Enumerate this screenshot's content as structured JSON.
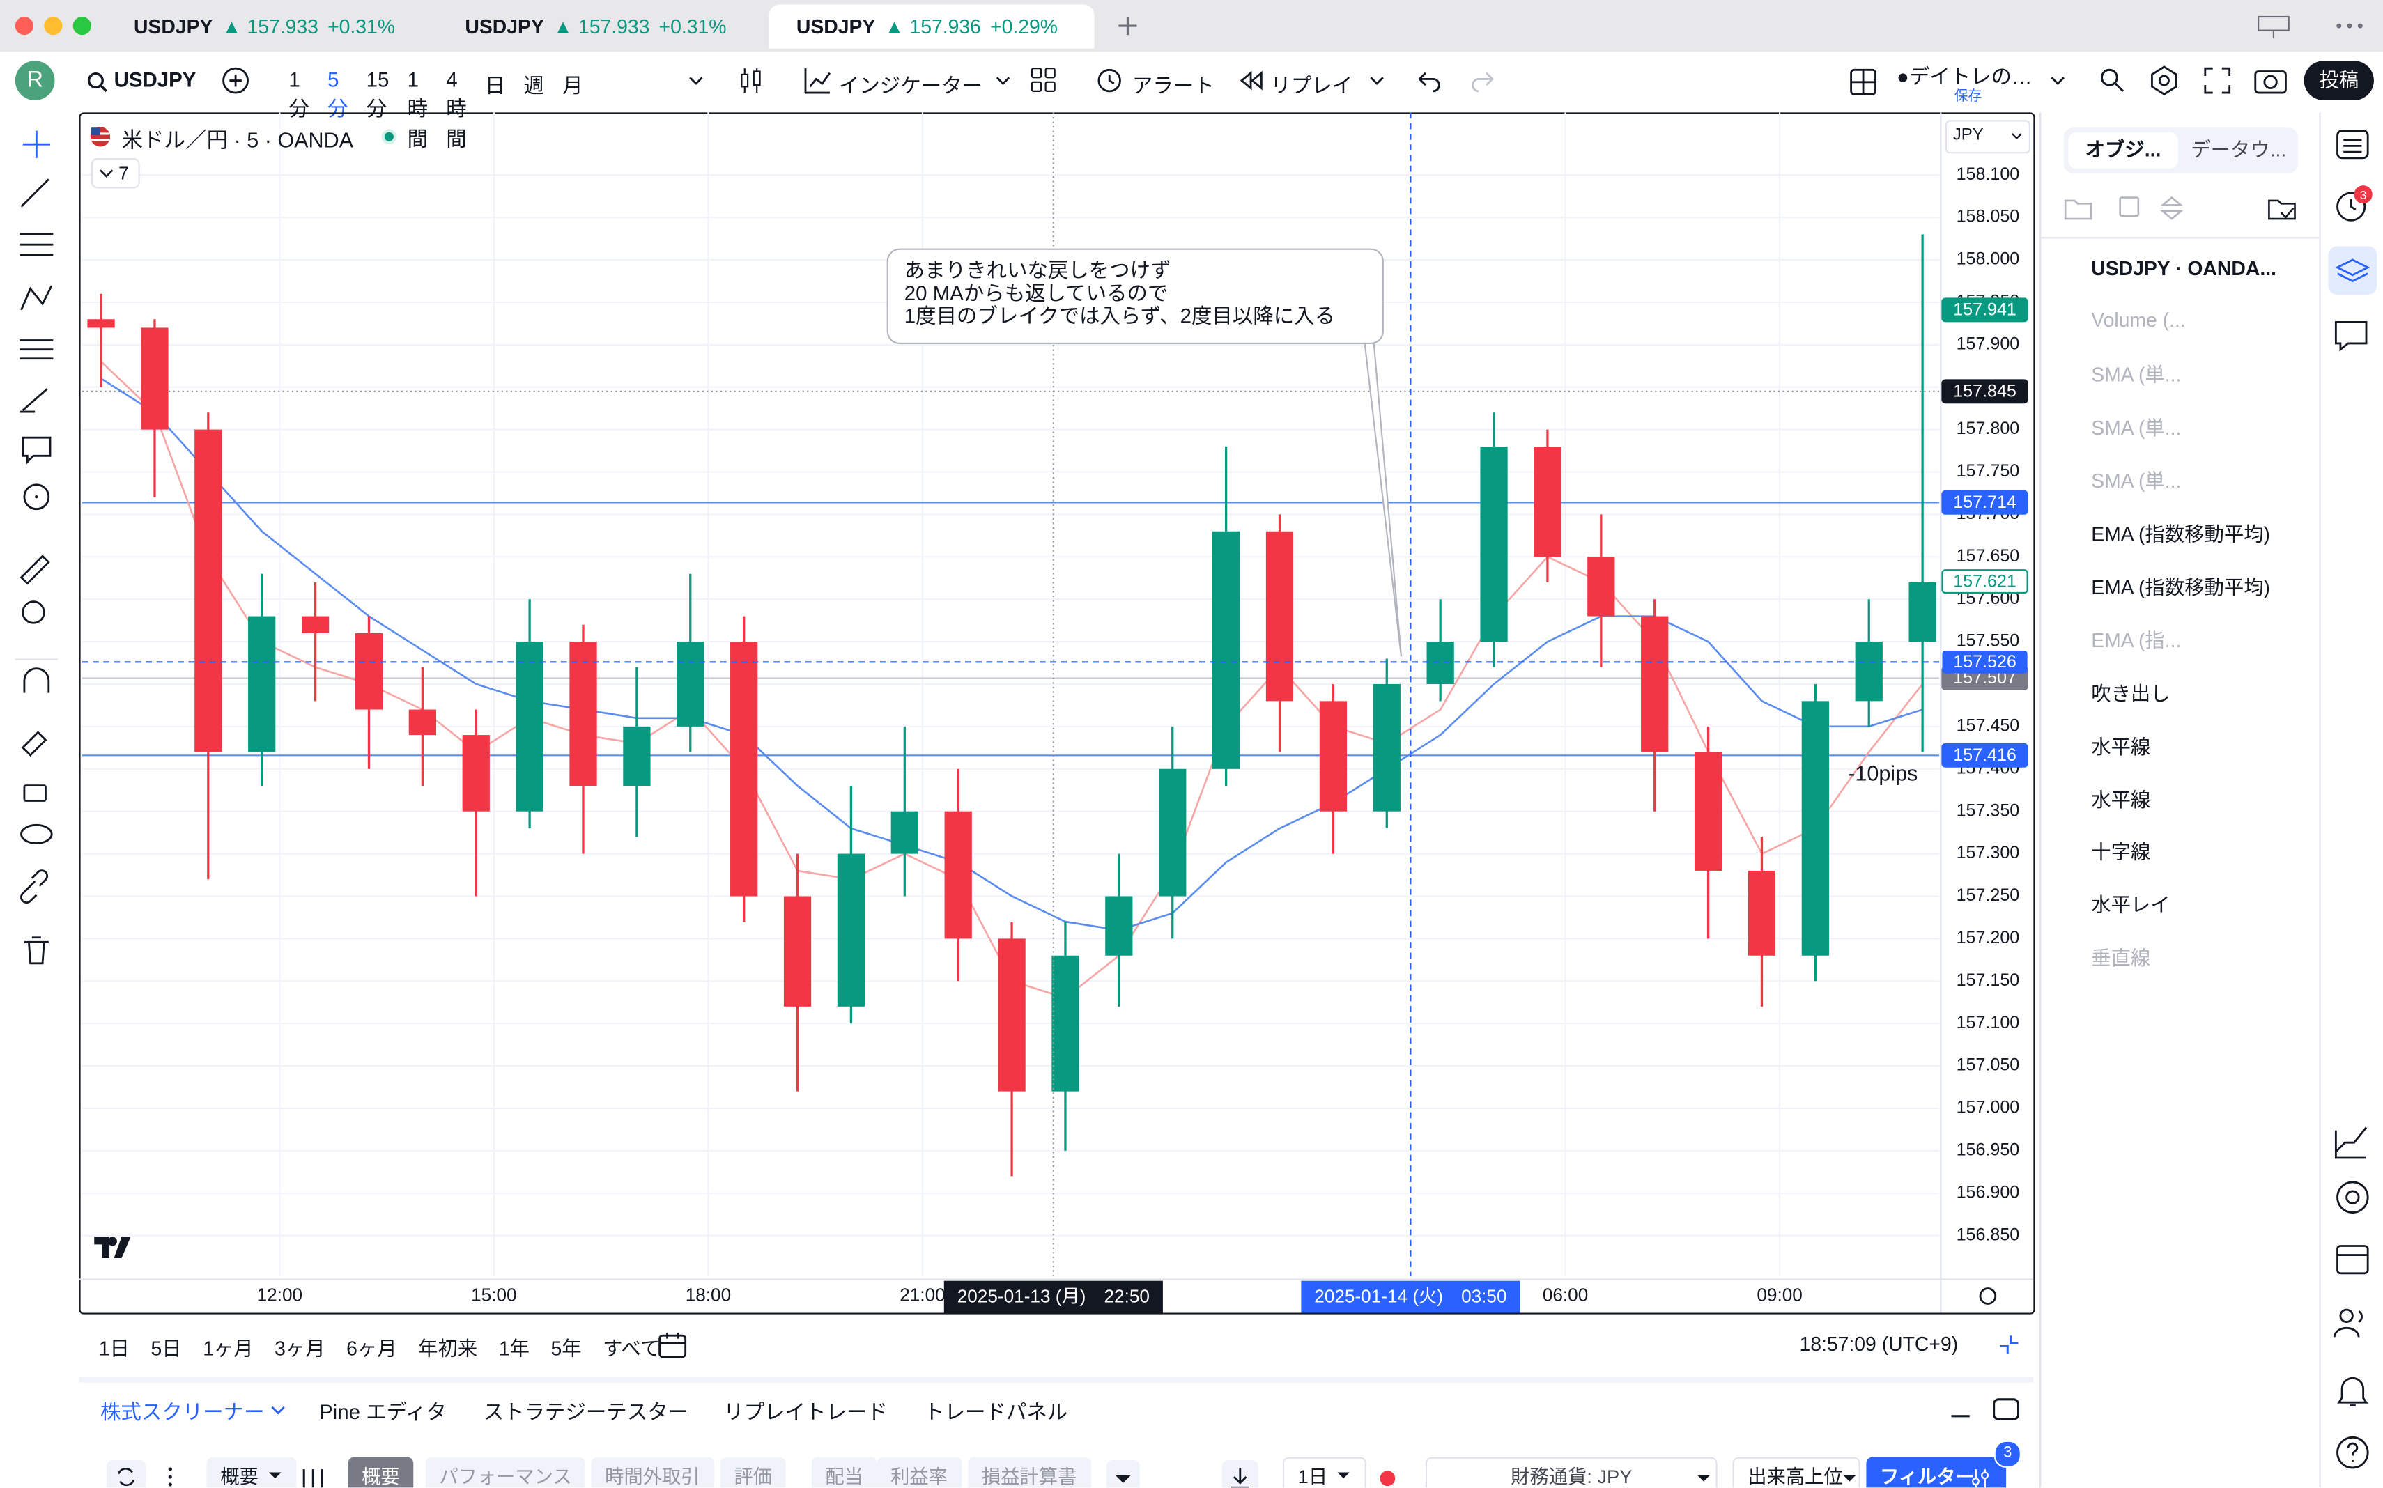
{
  "tabs": [
    {
      "symbol": "USDJPY",
      "price": "▲ 157.933",
      "change": "+0.31%"
    },
    {
      "symbol": "USDJPY",
      "price": "▲ 157.933",
      "change": "+0.31%"
    },
    {
      "symbol": "USDJPY",
      "price": "▲ 157.936",
      "change": "+0.29%"
    }
  ],
  "toolbar": {
    "avatar": "R",
    "symbol": "USDJPY",
    "intervals": [
      "1分",
      "5分",
      "15分",
      "1時間",
      "4時間",
      "日",
      "週",
      "月"
    ],
    "indicators": "インジケーター",
    "alert": "アラート",
    "replay": "リプレイ",
    "layout": "●デイトレの…",
    "saved": "保存",
    "post": "投稿"
  },
  "chart_header": {
    "title": "米ドル／円 · 5 · OANDA",
    "indicator_count": "7",
    "currency": "JPY"
  },
  "chart_data": {
    "type": "candlestick",
    "up_color": "#089981",
    "down_color": "#f23645",
    "x": [
      9.5,
      10.25,
      11,
      11.75,
      12.5,
      13.25,
      14,
      14.75,
      15.5,
      16.25,
      17,
      17.75,
      18.5,
      19.25,
      20,
      20.75,
      21.5,
      22.25,
      23,
      23.75,
      24.5,
      25.25,
      26,
      26.75,
      27.5,
      28.25,
      29,
      29.75,
      30.5,
      31.25,
      32,
      32.75,
      33.5,
      34.25,
      35
    ],
    "open": [
      157.93,
      157.92,
      157.8,
      157.42,
      157.58,
      157.56,
      157.47,
      157.44,
      157.35,
      157.55,
      157.38,
      157.45,
      157.55,
      157.25,
      157.12,
      157.3,
      157.35,
      157.2,
      157.02,
      157.18,
      157.25,
      157.4,
      157.68,
      157.48,
      157.35,
      157.5,
      157.55,
      157.78,
      157.65,
      157.58,
      157.42,
      157.28,
      157.18,
      157.48,
      157.55
    ],
    "high": [
      157.96,
      157.93,
      157.82,
      157.63,
      157.62,
      157.58,
      157.52,
      157.47,
      157.6,
      157.57,
      157.52,
      157.63,
      157.58,
      157.3,
      157.38,
      157.45,
      157.4,
      157.22,
      157.22,
      157.3,
      157.45,
      157.78,
      157.7,
      157.5,
      157.53,
      157.6,
      157.82,
      157.8,
      157.7,
      157.6,
      157.45,
      157.32,
      157.5,
      157.6,
      158.03
    ],
    "low": [
      157.85,
      157.72,
      157.27,
      157.38,
      157.48,
      157.4,
      157.38,
      157.25,
      157.33,
      157.3,
      157.32,
      157.42,
      157.22,
      157.02,
      157.1,
      157.25,
      157.15,
      156.92,
      156.95,
      157.12,
      157.2,
      157.38,
      157.42,
      157.3,
      157.33,
      157.48,
      157.52,
      157.62,
      157.52,
      157.35,
      157.2,
      157.12,
      157.15,
      157.45,
      157.42
    ],
    "close": [
      157.92,
      157.8,
      157.42,
      157.58,
      157.56,
      157.47,
      157.44,
      157.35,
      157.55,
      157.38,
      157.45,
      157.55,
      157.25,
      157.12,
      157.3,
      157.35,
      157.2,
      157.02,
      157.18,
      157.25,
      157.4,
      157.68,
      157.48,
      157.35,
      157.5,
      157.55,
      157.78,
      157.65,
      157.58,
      157.42,
      157.28,
      157.18,
      157.48,
      157.55,
      157.62
    ],
    "lines": [
      {
        "color": "#f7a6a6",
        "values": [
          157.88,
          157.82,
          157.65,
          157.55,
          157.52,
          157.5,
          157.47,
          157.42,
          157.46,
          157.44,
          157.43,
          157.47,
          157.4,
          157.28,
          157.27,
          157.3,
          157.27,
          157.15,
          157.13,
          157.18,
          157.28,
          157.45,
          157.52,
          157.45,
          157.43,
          157.47,
          157.58,
          157.65,
          157.62,
          157.55,
          157.42,
          157.3,
          157.33,
          157.42,
          157.5
        ]
      },
      {
        "color": "#5b8def",
        "values": [
          157.86,
          157.82,
          157.75,
          157.68,
          157.63,
          157.58,
          157.54,
          157.5,
          157.48,
          157.47,
          157.46,
          157.46,
          157.44,
          157.38,
          157.33,
          157.31,
          157.29,
          157.25,
          157.22,
          157.21,
          157.23,
          157.29,
          157.33,
          157.36,
          157.4,
          157.44,
          157.5,
          157.55,
          157.58,
          157.58,
          157.55,
          157.48,
          157.45,
          157.45,
          157.47
        ]
      }
    ],
    "xlim": [
      9.234,
      35.234
    ],
    "ylim": [
      156.802,
      158.163
    ],
    "xticks": [
      {
        "value": 12,
        "label": "12:00"
      },
      {
        "value": 15,
        "label": "15:00"
      },
      {
        "value": 18,
        "label": "18:00"
      },
      {
        "value": 21,
        "label": "21:00"
      },
      {
        "value": 30,
        "label": "06:00"
      },
      {
        "value": 33,
        "label": "09:00"
      }
    ],
    "yticks": [
      {
        "value": 158.1,
        "label": "158.100"
      },
      {
        "value": 158.05,
        "label": "158.050"
      },
      {
        "value": 158,
        "label": "158.000"
      },
      {
        "value": 157.95,
        "label": "157.950"
      },
      {
        "value": 157.9,
        "label": "157.900"
      },
      {
        "value": 157.85,
        "label": "157.850"
      },
      {
        "value": 157.8,
        "label": "157.800"
      },
      {
        "value": 157.75,
        "label": "157.750"
      },
      {
        "value": 157.7,
        "label": "157.700"
      },
      {
        "value": 157.65,
        "label": "157.650"
      },
      {
        "value": 157.6,
        "label": "157.600"
      },
      {
        "value": 157.55,
        "label": "157.550"
      },
      {
        "value": 157.5,
        "label": "157.500"
      },
      {
        "value": 157.45,
        "label": "157.450"
      },
      {
        "value": 157.4,
        "label": "157.400"
      },
      {
        "value": 157.35,
        "label": "157.350"
      },
      {
        "value": 157.3,
        "label": "157.300"
      },
      {
        "value": 157.25,
        "label": "157.250"
      },
      {
        "value": 157.2,
        "label": "157.200"
      },
      {
        "value": 157.15,
        "label": "157.150"
      },
      {
        "value": 157.1,
        "label": "157.100"
      },
      {
        "value": 157.05,
        "label": "157.050"
      },
      {
        "value": 157,
        "label": "157.000"
      },
      {
        "value": 156.95,
        "label": "156.950"
      },
      {
        "value": 156.9,
        "label": "156.900"
      },
      {
        "value": 156.85,
        "label": "156.850"
      }
    ],
    "grid": true,
    "price_labels": [
      {
        "value": 157.941,
        "bg": "#089981",
        "fg": "#ffffff"
      },
      {
        "value": 157.845,
        "bg": "#131722",
        "fg": "#ffffff",
        "line": "dotted",
        "line_color": "#9598a1"
      },
      {
        "value": 157.714,
        "bg": "#2962ff",
        "fg": "#ffffff",
        "line": "solid",
        "line_color": "#5b8def"
      },
      {
        "value": 157.621,
        "bg": "#ffffff",
        "fg": "#089981"
      },
      {
        "value": 157.507,
        "bg": "#787b86",
        "fg": "#ffffff",
        "line": "solid",
        "line_color": "#c9cbd1"
      },
      {
        "value": 157.416,
        "bg": "#2962ff",
        "fg": "#ffffff",
        "line": "solid",
        "line_color": "#5b8def"
      }
    ],
    "crosshair": {
      "x": 27.833,
      "y": 157.526,
      "x_label": "2025-01-14 (火)　03:50",
      "color": "#2962ff"
    },
    "marker": {
      "x": 22.833,
      "x_label": "2025-01-13 (月)　22:50"
    },
    "callout": [
      "あまりきれいな戻しをつけず",
      "20 MAからも返しているので",
      "1度目のブレイクでは入らず、2度目以降に入る"
    ],
    "pips_label": "-10pips"
  },
  "object_panel": {
    "tabs": [
      "オブジ...",
      "データウ..."
    ],
    "items": [
      {
        "label": "USDJPY · OANDA...",
        "hidden": false
      },
      {
        "label": "Volume (...",
        "hidden": true
      },
      {
        "label": "SMA (単...",
        "hidden": true
      },
      {
        "label": "SMA (単...",
        "hidden": true
      },
      {
        "label": "SMA (単...",
        "hidden": true
      },
      {
        "label": "EMA (指数移動平均)",
        "hidden": false
      },
      {
        "label": "EMA (指数移動平均)",
        "hidden": false
      },
      {
        "label": "EMA (指...",
        "hidden": true
      },
      {
        "label": "吹き出し",
        "hidden": false
      },
      {
        "label": "水平線",
        "hidden": false
      },
      {
        "label": "水平線",
        "hidden": false
      },
      {
        "label": "十字線",
        "hidden": false
      },
      {
        "label": "水平レイ",
        "hidden": false
      },
      {
        "label": "垂直線",
        "hidden": true
      }
    ]
  },
  "alerts_badge": "3",
  "range_bar": {
    "ranges": [
      "1日",
      "5日",
      "1ヶ月",
      "3ヶ月",
      "6ヶ月",
      "年初来",
      "1年",
      "5年",
      "すべて"
    ],
    "clock": "18:57:09 (UTC+9)"
  },
  "bottom_panel": {
    "tabs": [
      "株式スクリーナー",
      "Pine エディタ",
      "ストラテジーテスター",
      "リプレイトレード",
      "トレードパネル"
    ],
    "view_menu": "概要",
    "views": [
      "概要",
      "パフォーマンス",
      "時間外取引",
      "評価",
      "配当",
      "利益率",
      "損益計算書"
    ],
    "interval": "1日",
    "currency": "財務通貨: JPY",
    "sort": "出来高上位",
    "filter": "フィルター",
    "filter_count": "3"
  }
}
